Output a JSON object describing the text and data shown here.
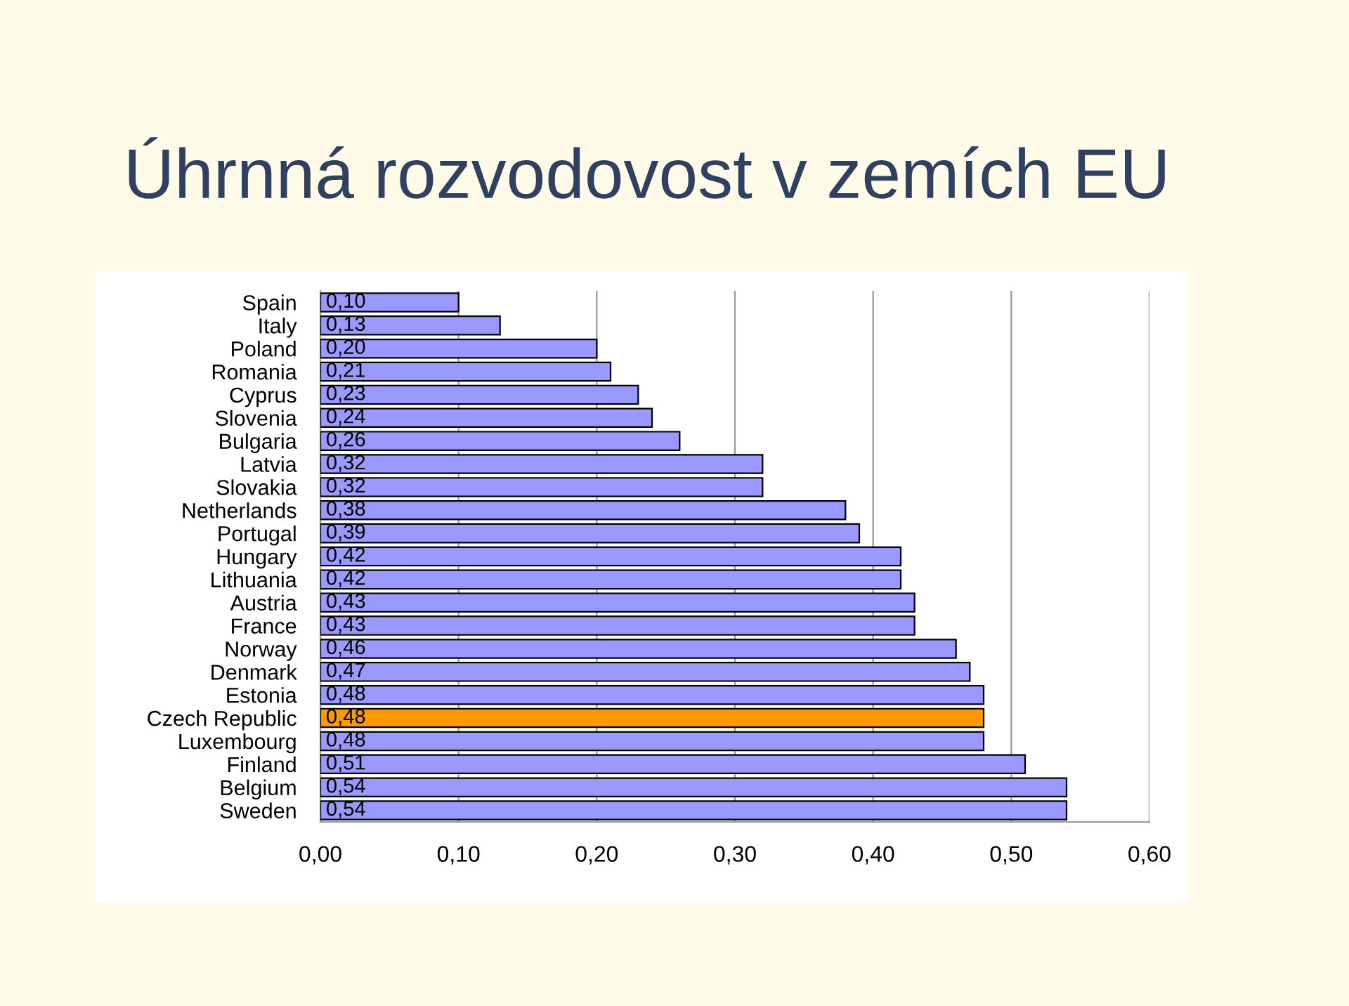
{
  "chart_data": {
    "type": "bar",
    "orientation": "horizontal",
    "title": "Úhrnná rozvodovost v zemích EU",
    "categories": [
      "Spain",
      "Italy",
      "Poland",
      "Romania",
      "Cyprus",
      "Slovenia",
      "Bulgaria",
      "Latvia",
      "Slovakia",
      "Netherlands",
      "Portugal",
      "Hungary",
      "Lithuania",
      "Austria",
      "France",
      "Norway",
      "Denmark",
      "Estonia",
      "Czech Republic",
      "Luxembourg",
      "Finland",
      "Belgium",
      "Sweden"
    ],
    "values": [
      0.1,
      0.13,
      0.2,
      0.21,
      0.23,
      0.24,
      0.26,
      0.32,
      0.32,
      0.38,
      0.39,
      0.42,
      0.42,
      0.43,
      0.43,
      0.46,
      0.47,
      0.48,
      0.48,
      0.48,
      0.51,
      0.54,
      0.54
    ],
    "colors": [
      "#9999ff",
      "#9999ff",
      "#9999ff",
      "#9999ff",
      "#9999ff",
      "#9999ff",
      "#9999ff",
      "#9999ff",
      "#9999ff",
      "#9999ff",
      "#9999ff",
      "#9999ff",
      "#9999ff",
      "#9999ff",
      "#9999ff",
      "#9999ff",
      "#9999ff",
      "#9999ff",
      "#ff9900",
      "#9999ff",
      "#9999ff",
      "#9999ff",
      "#9999ff"
    ],
    "value_labels": [
      "0,10",
      "0,13",
      "0,20",
      "0,21",
      "0,23",
      "0,24",
      "0,26",
      "0,32",
      "0,32",
      "0,38",
      "0,39",
      "0,42",
      "0,42",
      "0,43",
      "0,43",
      "0,46",
      "0,47",
      "0,48",
      "0,48",
      "0,48",
      "0,51",
      "0,54",
      "0,54"
    ],
    "xlim": [
      0,
      0.6
    ],
    "xticks": [
      {
        "value": 0,
        "label": "0,00"
      },
      {
        "value": 0.1,
        "label": "0,10"
      },
      {
        "value": 0.2,
        "label": "0,20"
      },
      {
        "value": 0.3,
        "label": "0,30"
      },
      {
        "value": 0.4,
        "label": "0,40"
      },
      {
        "value": 0.5,
        "label": "0,50"
      },
      {
        "value": 0.6,
        "label": "0,60"
      }
    ],
    "grid": "x",
    "legend": false
  }
}
